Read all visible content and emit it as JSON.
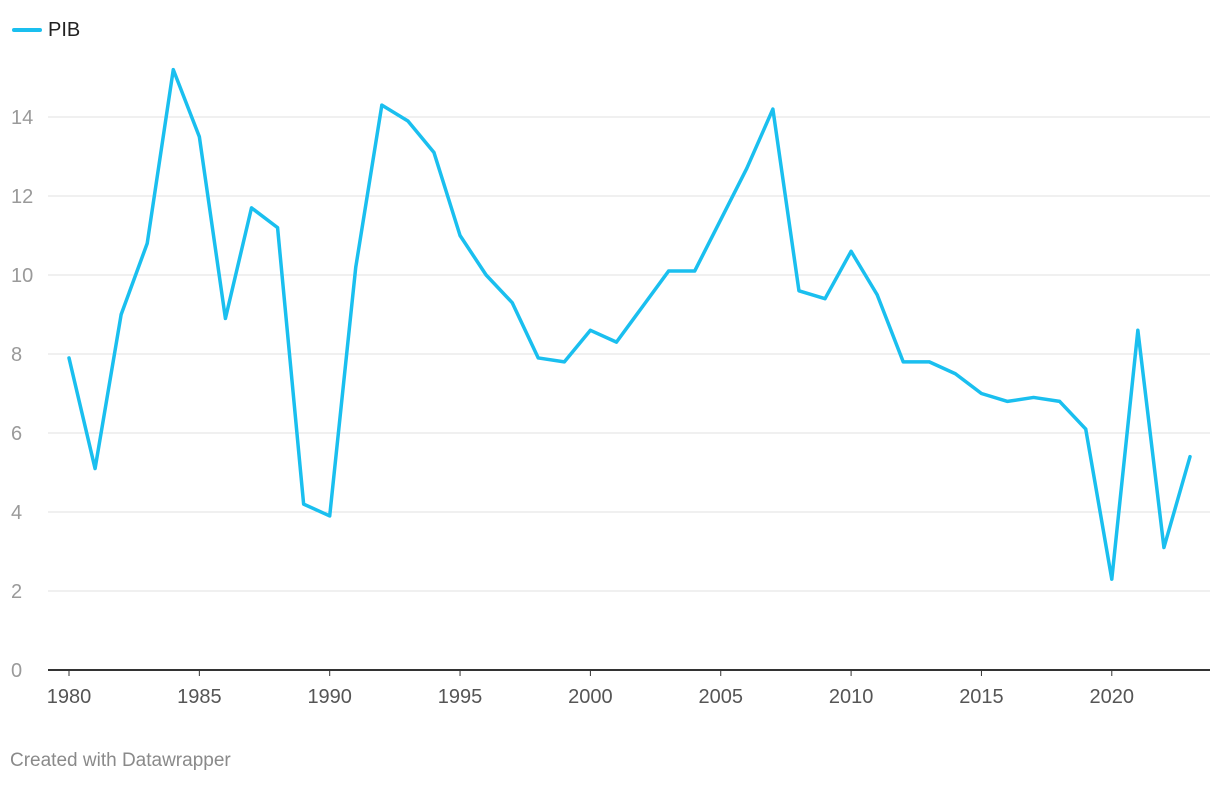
{
  "chart_data": {
    "type": "line",
    "title": "",
    "xlabel": "",
    "ylabel": "",
    "x": [
      1980,
      1981,
      1982,
      1983,
      1984,
      1985,
      1986,
      1987,
      1988,
      1989,
      1990,
      1991,
      1992,
      1993,
      1994,
      1995,
      1996,
      1997,
      1998,
      1999,
      2000,
      2001,
      2002,
      2003,
      2004,
      2005,
      2006,
      2007,
      2008,
      2009,
      2010,
      2011,
      2012,
      2013,
      2014,
      2015,
      2016,
      2017,
      2018,
      2019,
      2020,
      2021,
      2022,
      2023
    ],
    "series": [
      {
        "name": "PIB",
        "color": "#1abfef",
        "values": [
          7.9,
          5.1,
          9.0,
          10.8,
          15.2,
          13.5,
          8.9,
          11.7,
          11.2,
          4.2,
          3.9,
          10.2,
          14.3,
          13.9,
          13.1,
          11.0,
          10.0,
          9.3,
          7.9,
          7.8,
          8.6,
          8.3,
          9.2,
          10.1,
          10.1,
          11.4,
          12.7,
          14.2,
          9.6,
          9.4,
          10.6,
          9.5,
          7.8,
          7.8,
          7.5,
          7.0,
          6.8,
          6.9,
          6.8,
          6.1,
          2.3,
          8.6,
          3.1,
          5.4
        ]
      }
    ],
    "xlim": [
      1980,
      2023
    ],
    "ylim": [
      0,
      16
    ],
    "x_ticks": [
      "1980",
      "1985",
      "1990",
      "1995",
      "2000",
      "2005",
      "2010",
      "2015",
      "2020"
    ],
    "y_ticks": [
      "0",
      "2",
      "4",
      "6",
      "8",
      "10",
      "12",
      "14"
    ],
    "grid": true,
    "legend_position": "top-left"
  },
  "legend": {
    "label": "PIB"
  },
  "footer": {
    "credit": "Created with Datawrapper"
  },
  "colors": {
    "line": "#1abfef",
    "grid": "#e1e1e1",
    "axis": "#333333",
    "tick_text": "#9a9a9a",
    "x_tick_text": "#555555"
  }
}
